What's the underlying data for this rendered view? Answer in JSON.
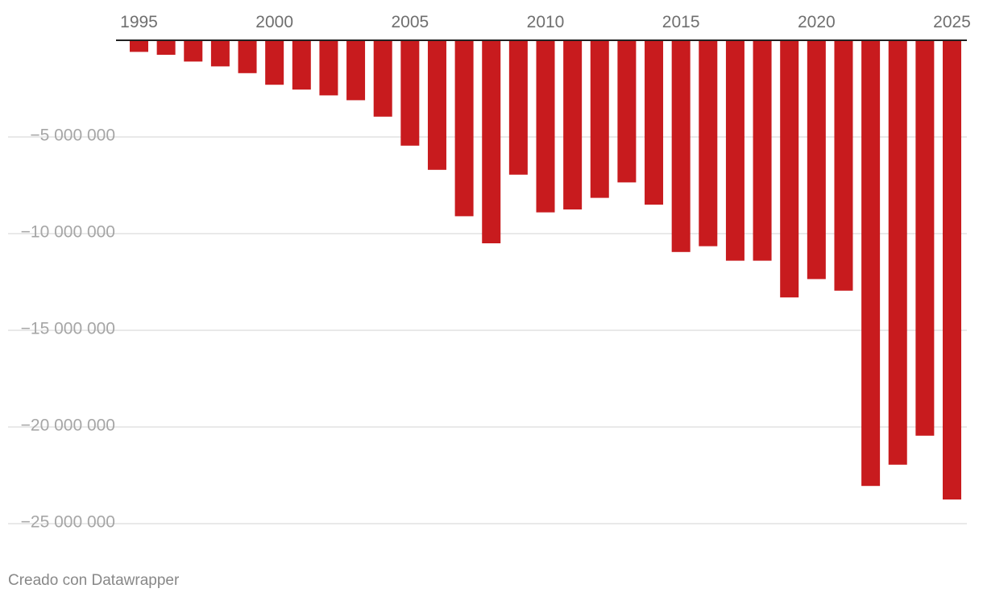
{
  "chart_data": {
    "type": "bar",
    "title": "",
    "xlabel": "",
    "ylabel": "",
    "categories": [
      1995,
      1996,
      1997,
      1998,
      1999,
      2000,
      2001,
      2002,
      2003,
      2004,
      2005,
      2006,
      2007,
      2008,
      2009,
      2010,
      2011,
      2012,
      2013,
      2014,
      2015,
      2016,
      2017,
      2018,
      2019,
      2020,
      2021,
      2022,
      2023,
      2024,
      2025
    ],
    "values": [
      -600000,
      -750000,
      -1100000,
      -1350000,
      -1700000,
      -2300000,
      -2550000,
      -2850000,
      -3100000,
      -3950000,
      -5450000,
      -6700000,
      -9100000,
      -10500000,
      -6950000,
      -8900000,
      -8750000,
      -8150000,
      -7350000,
      -8500000,
      -10950000,
      -10650000,
      -11400000,
      -11400000,
      -13300000,
      -12350000,
      -12950000,
      -23050000,
      -21950000,
      -20450000,
      -23750000
    ],
    "x_tick_labels": [
      "1995",
      "2000",
      "2005",
      "2010",
      "2015",
      "2020",
      "2025"
    ],
    "y_ticks": [
      {
        "value": -5000000,
        "label": "−5 000 000"
      },
      {
        "value": -10000000,
        "label": "−10 000 000"
      },
      {
        "value": -15000000,
        "label": "−15 000 000"
      },
      {
        "value": -20000000,
        "label": "−20 000 000"
      },
      {
        "value": -25000000,
        "label": "−25 000 000"
      }
    ],
    "ylim": [
      -25000000,
      0
    ],
    "grid": true,
    "colors": {
      "bar": "#c81b1e",
      "grid": "#e2e2e2",
      "baseline": "#222222"
    }
  },
  "footer": {
    "credit": "Creado con Datawrapper"
  }
}
